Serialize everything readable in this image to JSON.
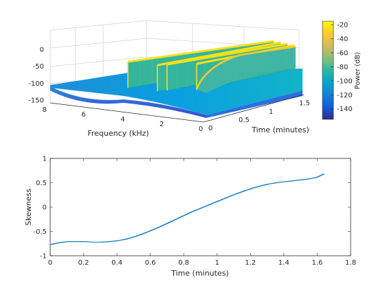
{
  "figure": "spectrogram-skewness",
  "chart_data": [
    {
      "type": "surface",
      "name": "power-spectrogram-3d",
      "xlabel": "Time (minutes)",
      "ylabel": "Frequency (kHz)",
      "zlabel": "",
      "x_ticks": [
        "0",
        "0.5",
        "1",
        "1.5"
      ],
      "y_ticks": [
        "8",
        "6",
        "4",
        "2",
        "0"
      ],
      "z_ticks": [
        "0",
        "-50",
        "-100",
        "-150"
      ],
      "xlim": [
        0,
        1.65
      ],
      "ylim": [
        0,
        8
      ],
      "zlim": [
        -150,
        0
      ],
      "floor_power_db": -105,
      "bursts": [
        {
          "t_start": 0.08,
          "t_end": 1.62,
          "freq_khz": 8,
          "peak_db": 0
        },
        {
          "t_start": 0.52,
          "t_end": 1.62,
          "freq_khz": 8,
          "peak_db": -8
        },
        {
          "t_start": 0.7,
          "t_end": 1.62,
          "freq_khz": 8,
          "peak_db": -10
        },
        {
          "t_start": 0.95,
          "t_end": 1.62,
          "freq_khz": 8,
          "peak_db": -12
        }
      ],
      "colorbar": {
        "label": "Power (dB)",
        "range": [
          -155,
          -15
        ],
        "ticks": [
          "-20",
          "-40",
          "-60",
          "-80",
          "-100",
          "-120",
          "-140"
        ],
        "colormap": "parula",
        "colors": [
          "#352a87",
          "#0f5cdd",
          "#1481d6",
          "#06a4ca",
          "#2eb7a4",
          "#87bf77",
          "#d1bb59",
          "#fec832",
          "#f9fb0e"
        ]
      },
      "grid": true
    },
    {
      "type": "line",
      "name": "skewness-vs-time",
      "xlabel": "Time (minutes)",
      "ylabel": "Skewness",
      "xlim": [
        0,
        1.8
      ],
      "ylim": [
        -1,
        1
      ],
      "x_ticks": [
        "0",
        "0.2",
        "0.4",
        "0.6",
        "0.8",
        "1",
        "1.2",
        "1.4",
        "1.6",
        "1.8"
      ],
      "y_ticks": [
        "1",
        "0.5",
        "0",
        "-0.5",
        "-1"
      ],
      "line_color": "#0072bd",
      "step": true,
      "series": [
        {
          "x": [
            0.0,
            0.05,
            0.1,
            0.15,
            0.2,
            0.25,
            0.3,
            0.35,
            0.4,
            0.45,
            0.5,
            0.55,
            0.6,
            0.65,
            0.7,
            0.75,
            0.8,
            0.85,
            0.9,
            0.95,
            1.0,
            1.05,
            1.1,
            1.15,
            1.2,
            1.25,
            1.3,
            1.35,
            1.4,
            1.45,
            1.5,
            1.55,
            1.6,
            1.64
          ],
          "y": [
            -0.77,
            -0.73,
            -0.71,
            -0.71,
            -0.71,
            -0.72,
            -0.72,
            -0.71,
            -0.69,
            -0.66,
            -0.61,
            -0.55,
            -0.48,
            -0.41,
            -0.33,
            -0.25,
            -0.17,
            -0.09,
            -0.02,
            0.05,
            0.12,
            0.19,
            0.26,
            0.32,
            0.38,
            0.43,
            0.47,
            0.5,
            0.52,
            0.54,
            0.56,
            0.58,
            0.62,
            0.69
          ]
        }
      ]
    }
  ]
}
